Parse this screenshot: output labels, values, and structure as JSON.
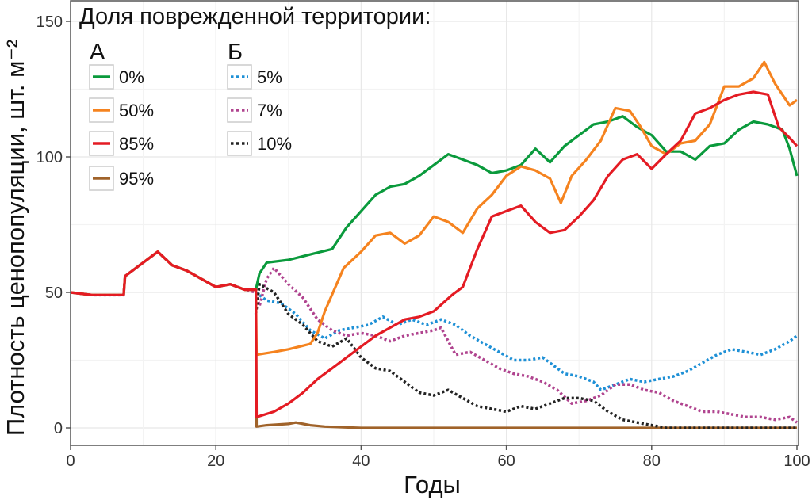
{
  "chart_data": {
    "type": "line",
    "xlabel": "Годы",
    "ylabel": "Плотность ценопопуляции, шт. м⁻²",
    "xlim": [
      0,
      100
    ],
    "ylim": [
      -6.5,
      157
    ],
    "xticks": [
      0,
      20,
      40,
      60,
      80,
      100
    ],
    "yticks": [
      0,
      50,
      100,
      150
    ],
    "grid": true,
    "legend": {
      "placement": "top-left",
      "title": "Доля поврежденной территории:",
      "groups": [
        {
          "label": "А",
          "entries": [
            "0%",
            "50%",
            "85%",
            "95%"
          ]
        },
        {
          "label": "Б",
          "entries": [
            "5%",
            "7%",
            "10%"
          ]
        }
      ]
    },
    "series": [
      {
        "name": "0%",
        "group": "А",
        "style": "solid",
        "color": "#0a9a3c",
        "points": [
          [
            0,
            50
          ],
          [
            3,
            49
          ],
          [
            7.3,
            49
          ],
          [
            7.5,
            56
          ],
          [
            10,
            61
          ],
          [
            12,
            65
          ],
          [
            14,
            60
          ],
          [
            16,
            58
          ],
          [
            18,
            55
          ],
          [
            20,
            52
          ],
          [
            22,
            53
          ],
          [
            24,
            51
          ],
          [
            25.5,
            51
          ],
          [
            26,
            57
          ],
          [
            27,
            61
          ],
          [
            30,
            62
          ],
          [
            33,
            64
          ],
          [
            36,
            66
          ],
          [
            38,
            74
          ],
          [
            40,
            80
          ],
          [
            42,
            86
          ],
          [
            44,
            89
          ],
          [
            46,
            90
          ],
          [
            48,
            93
          ],
          [
            50,
            97
          ],
          [
            52,
            101
          ],
          [
            54,
            99
          ],
          [
            56,
            97
          ],
          [
            58,
            94
          ],
          [
            60,
            95
          ],
          [
            62,
            97
          ],
          [
            64,
            103
          ],
          [
            66,
            98
          ],
          [
            68,
            104
          ],
          [
            70,
            108
          ],
          [
            72,
            112
          ],
          [
            74,
            113
          ],
          [
            76,
            115
          ],
          [
            78,
            111
          ],
          [
            80,
            108
          ],
          [
            82,
            102
          ],
          [
            84,
            102
          ],
          [
            86,
            99
          ],
          [
            88,
            104
          ],
          [
            90,
            105
          ],
          [
            92,
            110
          ],
          [
            94,
            113
          ],
          [
            96,
            112
          ],
          [
            98,
            110
          ],
          [
            99,
            103
          ],
          [
            100,
            93
          ]
        ]
      },
      {
        "name": "50%",
        "group": "А",
        "style": "solid",
        "color": "#f5831f",
        "points": [
          [
            0,
            50
          ],
          [
            3,
            49
          ],
          [
            7.3,
            49
          ],
          [
            7.5,
            56
          ],
          [
            10,
            61
          ],
          [
            12,
            65
          ],
          [
            14,
            60
          ],
          [
            16,
            58
          ],
          [
            18,
            55
          ],
          [
            20,
            52
          ],
          [
            22,
            53
          ],
          [
            24,
            51
          ],
          [
            25.5,
            51
          ],
          [
            25.6,
            27
          ],
          [
            28,
            28
          ],
          [
            30,
            29
          ],
          [
            33,
            31
          ],
          [
            34,
            35
          ],
          [
            35,
            43
          ],
          [
            37.6,
            59
          ],
          [
            40,
            65
          ],
          [
            42,
            71
          ],
          [
            44,
            72
          ],
          [
            46,
            68
          ],
          [
            48,
            71
          ],
          [
            50,
            78
          ],
          [
            52,
            76
          ],
          [
            54,
            72
          ],
          [
            56,
            81
          ],
          [
            58,
            86
          ],
          [
            60,
            93
          ],
          [
            62,
            96.5
          ],
          [
            64,
            95
          ],
          [
            66,
            92
          ],
          [
            67.5,
            83
          ],
          [
            69,
            93
          ],
          [
            71,
            99
          ],
          [
            73,
            106
          ],
          [
            75,
            118
          ],
          [
            77,
            117
          ],
          [
            78.5,
            111
          ],
          [
            80,
            104
          ],
          [
            82,
            101
          ],
          [
            84,
            105
          ],
          [
            86,
            106
          ],
          [
            88,
            112
          ],
          [
            90,
            126
          ],
          [
            92,
            126
          ],
          [
            94,
            129
          ],
          [
            95.5,
            135
          ],
          [
            97,
            127
          ],
          [
            99,
            119
          ],
          [
            100,
            121
          ]
        ]
      },
      {
        "name": "85%",
        "group": "А",
        "style": "solid",
        "color": "#e41b23",
        "points": [
          [
            0,
            50
          ],
          [
            3,
            49
          ],
          [
            7.3,
            49
          ],
          [
            7.5,
            56
          ],
          [
            10,
            61
          ],
          [
            12,
            65
          ],
          [
            14,
            60
          ],
          [
            16,
            58
          ],
          [
            18,
            55
          ],
          [
            20,
            52
          ],
          [
            22,
            53
          ],
          [
            24,
            51
          ],
          [
            25.5,
            51
          ],
          [
            25.6,
            4
          ],
          [
            28,
            6
          ],
          [
            30,
            9
          ],
          [
            32,
            13
          ],
          [
            34,
            18
          ],
          [
            36,
            22
          ],
          [
            38,
            26
          ],
          [
            40,
            30
          ],
          [
            42,
            34
          ],
          [
            44,
            37
          ],
          [
            46,
            40
          ],
          [
            48,
            41
          ],
          [
            50,
            43
          ],
          [
            52.5,
            49
          ],
          [
            54,
            52
          ],
          [
            56,
            66
          ],
          [
            58,
            78
          ],
          [
            60,
            80
          ],
          [
            62,
            82
          ],
          [
            64,
            76
          ],
          [
            66,
            72
          ],
          [
            68,
            73
          ],
          [
            70,
            78
          ],
          [
            72,
            84
          ],
          [
            74,
            93
          ],
          [
            76,
            99
          ],
          [
            78,
            101
          ],
          [
            80,
            95.6
          ],
          [
            82,
            101
          ],
          [
            84,
            106
          ],
          [
            86,
            116
          ],
          [
            88,
            118
          ],
          [
            90,
            121
          ],
          [
            92,
            123
          ],
          [
            94,
            124
          ],
          [
            96,
            123
          ],
          [
            97.5,
            111
          ],
          [
            99,
            107
          ],
          [
            100,
            104
          ]
        ]
      },
      {
        "name": "95%",
        "group": "А",
        "style": "solid",
        "color": "#a0632a",
        "points": [
          [
            0,
            50
          ],
          [
            3,
            49
          ],
          [
            7.3,
            49
          ],
          [
            7.5,
            56
          ],
          [
            10,
            61
          ],
          [
            12,
            65
          ],
          [
            14,
            60
          ],
          [
            16,
            58
          ],
          [
            18,
            55
          ],
          [
            20,
            52
          ],
          [
            22,
            53
          ],
          [
            24,
            51
          ],
          [
            25.5,
            51
          ],
          [
            25.6,
            0.5
          ],
          [
            27,
            1
          ],
          [
            30,
            1.5
          ],
          [
            31,
            2
          ],
          [
            33,
            1
          ],
          [
            35,
            0.5
          ],
          [
            40,
            0
          ],
          [
            100,
            0
          ]
        ]
      },
      {
        "name": "5%",
        "group": "Б",
        "style": "dotted",
        "color": "#1e90d6",
        "points": [
          [
            25.5,
            50
          ],
          [
            27,
            47
          ],
          [
            29,
            46
          ],
          [
            31,
            42
          ],
          [
            33,
            36
          ],
          [
            35,
            33
          ],
          [
            37,
            36
          ],
          [
            39,
            37
          ],
          [
            41,
            38
          ],
          [
            43,
            41
          ],
          [
            45,
            38
          ],
          [
            47,
            40
          ],
          [
            49,
            38
          ],
          [
            51,
            40
          ],
          [
            53,
            38
          ],
          [
            55,
            34
          ],
          [
            57,
            31
          ],
          [
            59,
            28
          ],
          [
            61,
            25
          ],
          [
            63,
            25
          ],
          [
            65,
            26
          ],
          [
            66,
            24
          ],
          [
            68,
            20
          ],
          [
            70,
            19
          ],
          [
            72,
            17
          ],
          [
            73,
            14
          ],
          [
            75,
            16
          ],
          [
            77,
            18
          ],
          [
            79,
            17
          ],
          [
            81,
            18
          ],
          [
            83,
            19
          ],
          [
            85,
            21
          ],
          [
            87,
            24
          ],
          [
            89,
            27
          ],
          [
            91,
            29
          ],
          [
            93,
            28
          ],
          [
            95,
            27
          ],
          [
            97,
            29
          ],
          [
            99,
            32
          ],
          [
            100,
            34
          ]
        ]
      },
      {
        "name": "7%",
        "group": "Б",
        "style": "dotted",
        "color": "#b0448f",
        "points": [
          [
            0,
            50
          ],
          [
            3,
            49
          ],
          [
            7.3,
            49
          ],
          [
            7.5,
            56
          ],
          [
            10,
            61
          ],
          [
            12,
            65
          ],
          [
            14,
            60
          ],
          [
            16,
            58
          ],
          [
            18,
            55
          ],
          [
            20,
            52
          ],
          [
            22,
            53
          ],
          [
            24,
            51
          ],
          [
            25.5,
            50
          ],
          [
            26,
            45
          ],
          [
            27,
            55
          ],
          [
            28,
            59
          ],
          [
            30,
            53
          ],
          [
            32,
            48
          ],
          [
            34,
            40
          ],
          [
            36,
            36
          ],
          [
            38,
            34
          ],
          [
            40,
            35
          ],
          [
            42,
            34
          ],
          [
            44,
            32
          ],
          [
            46,
            34
          ],
          [
            48,
            35
          ],
          [
            50,
            36
          ],
          [
            51,
            37
          ],
          [
            53,
            27
          ],
          [
            55,
            28
          ],
          [
            57,
            25
          ],
          [
            59,
            22
          ],
          [
            61,
            20
          ],
          [
            63,
            19
          ],
          [
            65,
            17
          ],
          [
            67,
            14
          ],
          [
            69,
            9
          ],
          [
            71,
            10
          ],
          [
            73,
            12
          ],
          [
            75,
            16
          ],
          [
            77,
            16
          ],
          [
            79,
            14
          ],
          [
            81,
            13
          ],
          [
            83,
            10
          ],
          [
            85,
            8
          ],
          [
            87,
            6
          ],
          [
            89,
            6
          ],
          [
            91,
            5
          ],
          [
            93,
            4
          ],
          [
            95,
            4
          ],
          [
            97,
            3
          ],
          [
            99,
            4
          ],
          [
            100,
            2
          ]
        ]
      },
      {
        "name": "10%",
        "group": "Б",
        "style": "dotted",
        "color": "#222222",
        "points": [
          [
            25.5,
            42
          ],
          [
            26,
            53
          ],
          [
            28,
            50
          ],
          [
            30,
            42
          ],
          [
            32,
            38
          ],
          [
            34,
            32
          ],
          [
            36,
            30
          ],
          [
            38,
            33
          ],
          [
            40,
            26
          ],
          [
            42,
            22
          ],
          [
            44,
            21
          ],
          [
            46,
            17
          ],
          [
            48,
            13
          ],
          [
            50,
            12
          ],
          [
            52,
            14
          ],
          [
            54,
            11
          ],
          [
            56,
            8
          ],
          [
            58,
            7
          ],
          [
            60,
            6
          ],
          [
            62,
            8
          ],
          [
            64,
            7
          ],
          [
            66,
            9
          ],
          [
            68,
            11
          ],
          [
            70,
            11
          ],
          [
            72,
            10
          ],
          [
            74,
            6
          ],
          [
            76,
            3
          ],
          [
            78,
            2
          ],
          [
            80,
            1
          ],
          [
            82,
            0
          ],
          [
            100,
            0
          ]
        ]
      }
    ]
  }
}
